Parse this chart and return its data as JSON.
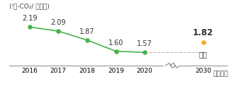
{
  "years": [
    2016,
    2017,
    2018,
    2019,
    2020
  ],
  "values": [
    2.19,
    2.09,
    1.87,
    1.6,
    1.57
  ],
  "target_year": 2030,
  "target_value": 1.82,
  "target_label": "目標",
  "line_color": "#45b348",
  "dot_color": "#45b348",
  "target_dot_color": "#f5a623",
  "dashed_line_color": "#bbbbbb",
  "ylabel": "(ʳｳ-CO₂/ 百万円)",
  "xlabel": "（年度）",
  "background_color": "#ffffff",
  "value_fontsize": 7.0,
  "target_value_fontsize": 8.5,
  "axis_fontsize": 6.5,
  "ylim": [
    1.25,
    2.45
  ],
  "left_xlim": [
    2015.3,
    2021.2
  ],
  "right_xlim": [
    2028.5,
    2031.5
  ]
}
